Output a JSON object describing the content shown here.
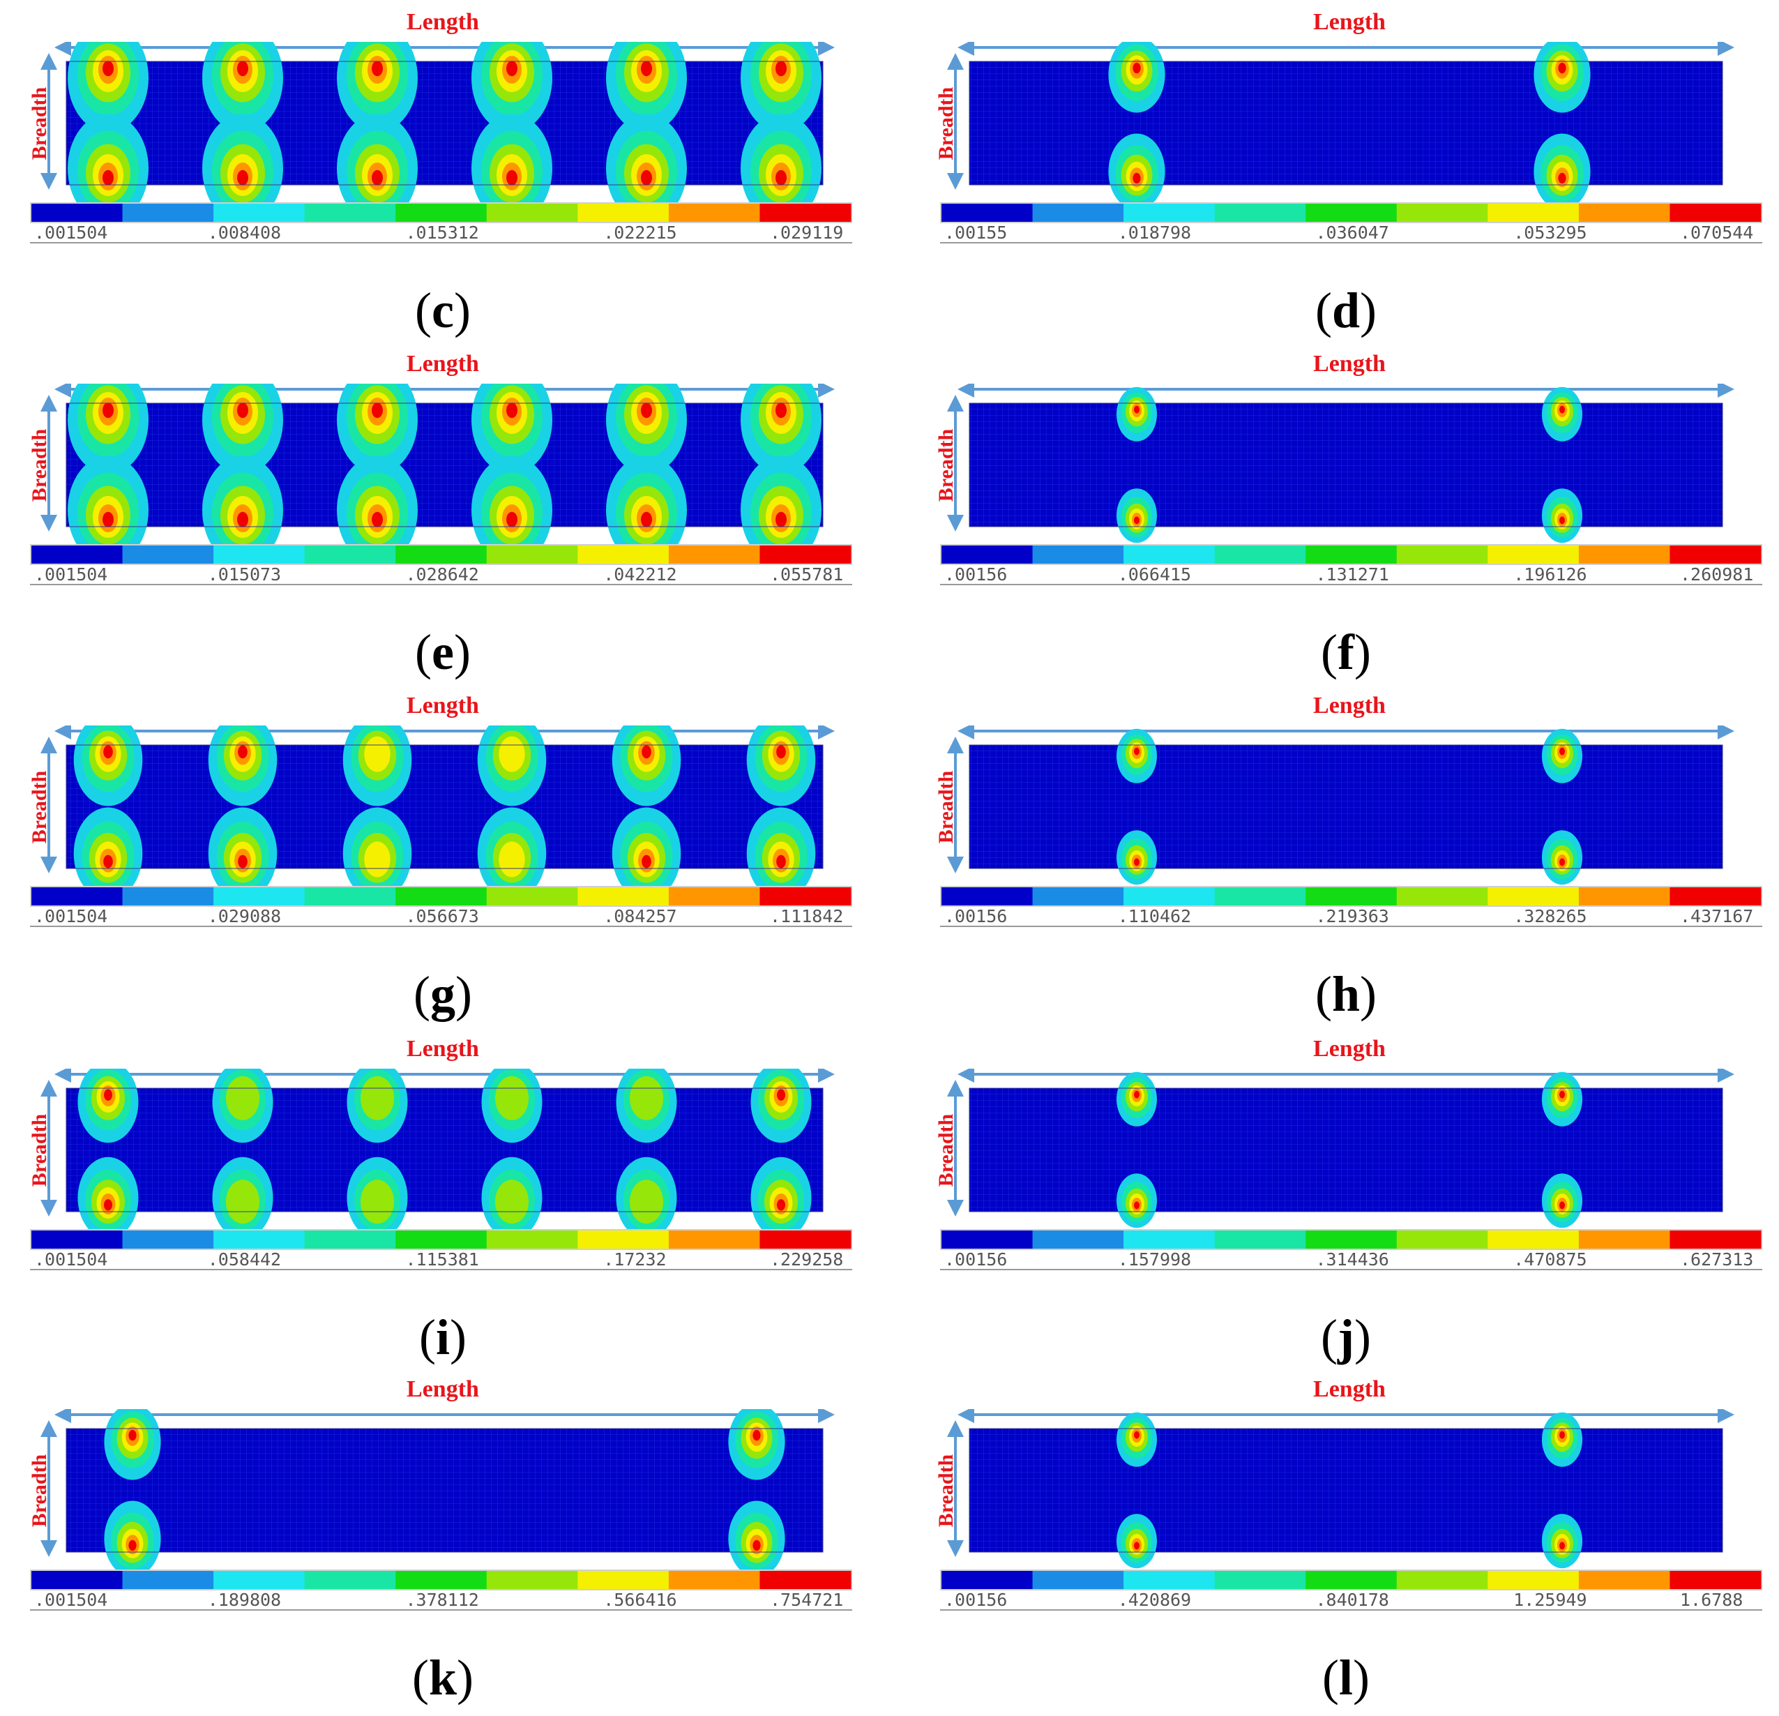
{
  "labels": {
    "length": "Length",
    "breadth": "Breadth"
  },
  "colorbar": [
    "#0000c8",
    "#1a8ce6",
    "#1ee6f0",
    "#19e6a5",
    "#14dc14",
    "#96e60a",
    "#f5f000",
    "#ff9600",
    "#f00000"
  ],
  "mesh_color": "#0a14c8",
  "panels": [
    {
      "id": "c",
      "ticks": [
        ".001504",
        ".008408",
        ".015312",
        ".022215",
        ".029119"
      ],
      "hotspots": 6,
      "pattern": "strong"
    },
    {
      "id": "d",
      "ticks": [
        ".00155",
        ".018798",
        ".036047",
        ".053295",
        ".070544"
      ],
      "hotspots": 2,
      "pattern": "cross"
    },
    {
      "id": "e",
      "ticks": [
        ".001504",
        ".015073",
        ".028642",
        ".042212",
        ".055781"
      ],
      "hotspots": 6,
      "pattern": "strong"
    },
    {
      "id": "f",
      "ticks": [
        ".00156",
        ".066415",
        ".131271",
        ".196126",
        ".260981"
      ],
      "hotspots": 2,
      "pattern": "small"
    },
    {
      "id": "g",
      "ticks": [
        ".001504",
        ".029088",
        ".056673",
        ".084257",
        ".111842"
      ],
      "hotspots": 6,
      "pattern": "medium"
    },
    {
      "id": "h",
      "ticks": [
        ".00156",
        ".110462",
        ".219363",
        ".328265",
        ".437167"
      ],
      "hotspots": 2,
      "pattern": "small"
    },
    {
      "id": "i",
      "ticks": [
        ".001504",
        ".058442",
        ".115381",
        ".17232",
        ".229258"
      ],
      "hotspots": 6,
      "pattern": "weak"
    },
    {
      "id": "j",
      "ticks": [
        ".00156",
        ".157998",
        ".314436",
        ".470875",
        ".627313"
      ],
      "hotspots": 2,
      "pattern": "small"
    },
    {
      "id": "k",
      "ticks": [
        ".001504",
        ".189808",
        ".378112",
        ".566416",
        ".754721"
      ],
      "hotspots": 2,
      "pattern": "edge"
    },
    {
      "id": "l",
      "ticks": [
        ".00156",
        ".420869",
        ".840178",
        "1.25949",
        "1.6788"
      ],
      "hotspots": 2,
      "pattern": "small"
    }
  ]
}
